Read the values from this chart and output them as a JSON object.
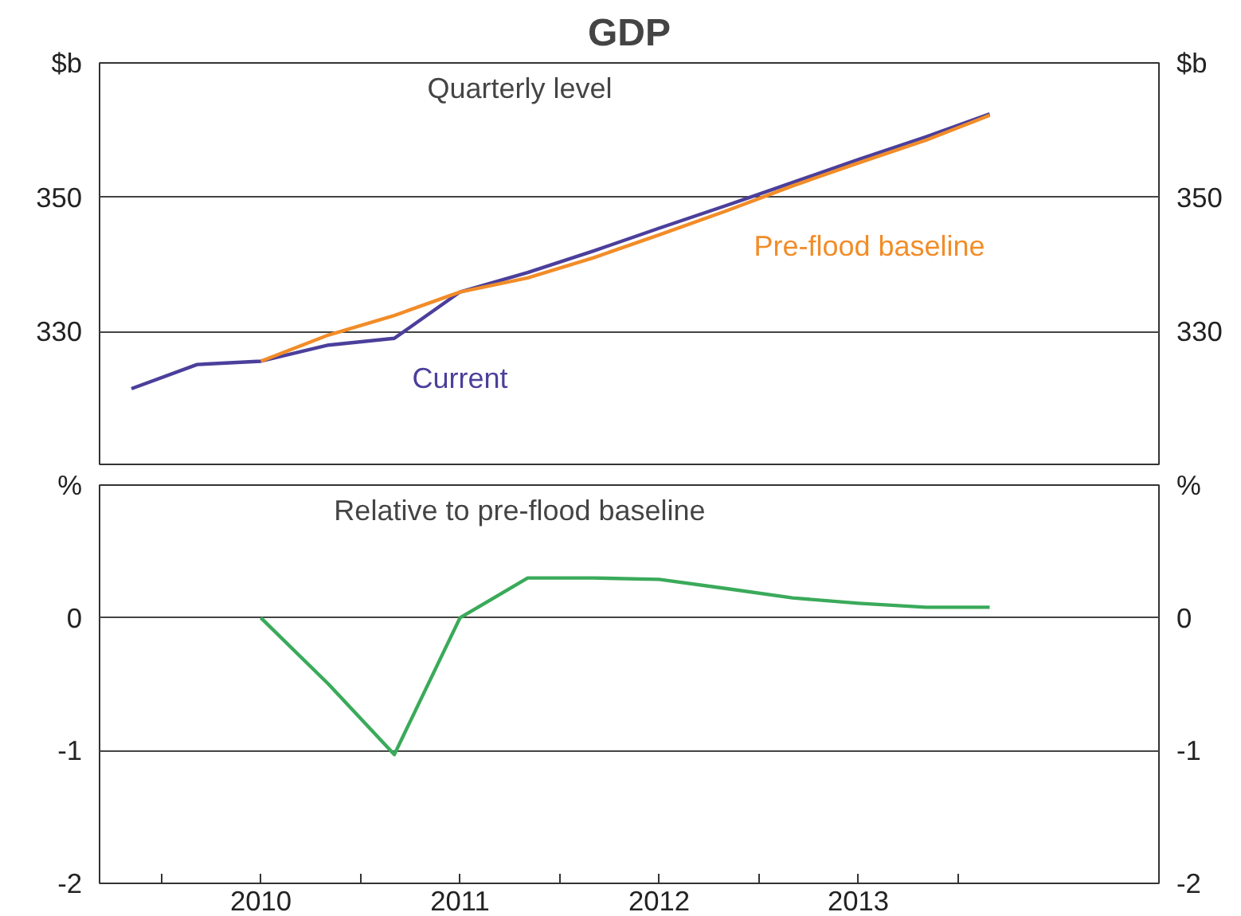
{
  "chart_data": [
    {
      "type": "line",
      "title": "GDP",
      "subtitle": "Quarterly level",
      "x": [
        2009.35,
        2009.68,
        2010.0,
        2010.34,
        2010.67,
        2011.0,
        2011.34,
        2011.67,
        2012.0,
        2012.34,
        2012.67,
        2013.0,
        2013.34,
        2013.66
      ],
      "series": [
        {
          "name": "Current",
          "color": "#4b3f9b",
          "values": [
            321.5,
            325.1,
            325.6,
            328.0,
            329.0,
            335.9,
            338.8,
            342.0,
            345.4,
            348.8,
            352.2,
            355.6,
            359.0,
            362.4
          ]
        },
        {
          "name": "Pre-flood baseline",
          "color": "#f28c28",
          "values": [
            null,
            null,
            325.6,
            329.5,
            332.4,
            335.9,
            338.0,
            341.0,
            344.4,
            348.0,
            351.7,
            355.1,
            358.5,
            362.2
          ]
        }
      ],
      "xlim": [
        2009.19,
        2014.51
      ],
      "ylim": [
        310,
        370
      ],
      "yticks": [
        330,
        350,
        {
          "value": 370,
          "label": "$b"
        }
      ],
      "y2lim": [
        310,
        370
      ],
      "y2ticks": [
        330,
        350,
        {
          "value": 370,
          "label": "$b"
        }
      ],
      "tick_labels": "y",
      "grid": "y",
      "marker": "none",
      "line_style": "solid"
    },
    {
      "type": "line",
      "title": "Relative to pre-flood baseline",
      "x": [
        2010.0,
        2010.34,
        2010.67,
        2011.0,
        2011.34,
        2011.67,
        2012.0,
        2012.34,
        2012.67,
        2013.0,
        2013.34,
        2013.66
      ],
      "series": [
        {
          "color": "#3aaa5a",
          "values": [
            0,
            -0.5,
            -1.03,
            0,
            0.3,
            0.3,
            0.29,
            0.22,
            0.15,
            0.11,
            0.08,
            0.08
          ]
        }
      ],
      "xlim": [
        2009.19,
        2014.51
      ],
      "xticks": [
        {
          "value": 2009.5,
          "label": null
        },
        {
          "value": 2010,
          "label": "2010"
        },
        {
          "value": 2010.5,
          "label": null
        },
        {
          "value": 2011,
          "label": "2011"
        },
        {
          "value": 2011.5,
          "label": null
        },
        {
          "value": 2012,
          "label": "2012"
        },
        {
          "value": 2012.5,
          "label": null
        },
        {
          "value": 2013,
          "label": "2013"
        },
        {
          "value": 2013.5,
          "label": null
        }
      ],
      "ylim": [
        -2,
        1
      ],
      "yticks": [
        -2,
        -1,
        0,
        {
          "value": 1,
          "label": "%"
        }
      ],
      "y2lim": [
        -2,
        1
      ],
      "y2ticks": [
        -2,
        -1,
        0,
        {
          "value": 1,
          "label": "%"
        }
      ],
      "grid": "y",
      "marker": "none",
      "line_style": "solid"
    }
  ]
}
